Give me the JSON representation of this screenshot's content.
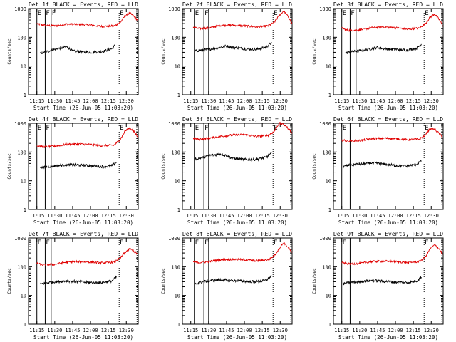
{
  "colors": {
    "events": "#000000",
    "lld": "#e00000",
    "markers": "#000000",
    "axes": "#000000"
  },
  "chart_data": [
    {
      "type": "line",
      "detector": "1f",
      "title": "Det 1f BLACK = Events, RED = LLD",
      "xlabel": "Start Time (26-Jun-05 11:03:20)",
      "ylabel": "Counts/sec",
      "yscale": "log",
      "ylim": [
        1,
        1000
      ],
      "y_ticks": [
        "1",
        "10",
        "100",
        "1000"
      ],
      "x_ticks": [
        "11:15",
        "11:30",
        "11:45",
        "12:00",
        "12:15",
        "12:30"
      ],
      "markers": [
        {
          "label": "E",
          "time": "11:15",
          "style": "solid"
        },
        {
          "label": "F",
          "time": "11:22",
          "style": "solid"
        },
        {
          "label": "F",
          "time": "11:27",
          "style": "solid"
        },
        {
          "label": "E",
          "time": "12:24",
          "style": "dotted"
        },
        {
          "label": "",
          "time": "12:39",
          "style": "dotted"
        }
      ],
      "series": [
        {
          "name": "LLD",
          "color": "red",
          "time": [
            "11:15",
            "11:20",
            "11:30",
            "11:40",
            "11:50",
            "12:00",
            "12:10",
            "12:20",
            "12:25",
            "12:29",
            "12:33",
            "12:37",
            "12:40"
          ],
          "values": [
            300,
            265,
            250,
            285,
            285,
            265,
            240,
            250,
            330,
            560,
            700,
            500,
            380
          ]
        },
        {
          "name": "Events",
          "color": "black",
          "time": [
            "11:18",
            "11:25",
            "11:30",
            "11:35",
            "11:40",
            "11:45",
            "11:50",
            "12:00",
            "12:10",
            "12:18",
            "12:21"
          ],
          "values": [
            28,
            33,
            38,
            42,
            47,
            33,
            32,
            30,
            32,
            40,
            55
          ]
        }
      ]
    },
    {
      "type": "line",
      "detector": "2f",
      "title": "Det 2f BLACK = Events, RED = LLD",
      "xlabel": "Start Time (26-Jun-05 11:03:20)",
      "ylabel": "Counts/sec",
      "yscale": "log",
      "ylim": [
        1,
        1000
      ],
      "y_ticks": [
        "1",
        "10",
        "100",
        "1000"
      ],
      "x_ticks": [
        "11:15",
        "11:30",
        "11:45",
        "12:00",
        "12:15",
        "12:30"
      ],
      "markers": [
        {
          "label": "E",
          "time": "11:18",
          "style": "solid"
        },
        {
          "label": "F",
          "time": "11:26",
          "style": "solid"
        },
        {
          "label": "",
          "time": "11:30",
          "style": "solid"
        },
        {
          "label": "E",
          "time": "12:24",
          "style": "dotted"
        },
        {
          "label": "",
          "time": "12:39",
          "style": "dotted"
        }
      ],
      "series": [
        {
          "name": "LLD",
          "color": "red",
          "time": [
            "11:17",
            "11:22",
            "11:30",
            "11:40",
            "11:50",
            "12:00",
            "12:10",
            "12:20",
            "12:25",
            "12:29",
            "12:33",
            "12:37",
            "12:40"
          ],
          "values": [
            230,
            200,
            210,
            260,
            265,
            250,
            230,
            250,
            330,
            560,
            830,
            500,
            300
          ]
        },
        {
          "name": "Events",
          "color": "black",
          "time": [
            "11:18",
            "11:25",
            "11:30",
            "11:40",
            "11:45",
            "11:50",
            "12:00",
            "12:10",
            "12:18",
            "12:23"
          ],
          "values": [
            33,
            36,
            38,
            45,
            50,
            45,
            40,
            38,
            45,
            65
          ]
        }
      ]
    },
    {
      "type": "line",
      "detector": "3f",
      "title": "Det 3f BLACK = Events, RED = LLD",
      "xlabel": "Start Time (26-Jun-05 11:03:20)",
      "ylabel": "Counts/sec",
      "yscale": "log",
      "ylim": [
        1,
        1000
      ],
      "y_ticks": [
        "1",
        "10",
        "100",
        "1000"
      ],
      "x_ticks": [
        "11:15",
        "11:30",
        "11:45",
        "12:00",
        "12:15",
        "12:30"
      ],
      "markers": [
        {
          "label": "E",
          "time": "11:15",
          "style": "solid"
        },
        {
          "label": "F",
          "time": "11:22",
          "style": "solid"
        },
        {
          "label": "",
          "time": "11:27",
          "style": "solid"
        },
        {
          "label": "E",
          "time": "12:24",
          "style": "dotted"
        },
        {
          "label": "",
          "time": "12:39",
          "style": "dotted"
        }
      ],
      "series": [
        {
          "name": "LLD",
          "color": "red",
          "time": [
            "11:15",
            "11:20",
            "11:30",
            "11:40",
            "11:50",
            "12:00",
            "12:10",
            "12:20",
            "12:25",
            "12:29",
            "12:33",
            "12:37",
            "12:40"
          ],
          "values": [
            210,
            175,
            180,
            215,
            230,
            215,
            190,
            210,
            290,
            500,
            650,
            400,
            240
          ]
        },
        {
          "name": "Events",
          "color": "black",
          "time": [
            "11:18",
            "11:25",
            "11:30",
            "11:40",
            "11:45",
            "11:50",
            "12:00",
            "12:10",
            "12:18",
            "12:22"
          ],
          "values": [
            28,
            32,
            34,
            40,
            45,
            40,
            38,
            36,
            42,
            60
          ]
        }
      ]
    },
    {
      "type": "line",
      "detector": "4f",
      "title": "Det 4f BLACK = Events, RED = LLD",
      "xlabel": "Start Time (26-Jun-05 11:03:20)",
      "ylabel": "Counts/sec",
      "yscale": "log",
      "ylim": [
        1,
        1000
      ],
      "y_ticks": [
        "1",
        "10",
        "100",
        "1000"
      ],
      "x_ticks": [
        "11:15",
        "11:30",
        "11:45",
        "12:00",
        "12:15",
        "12:30"
      ],
      "markers": [
        {
          "label": "E",
          "time": "11:15",
          "style": "solid"
        },
        {
          "label": "F",
          "time": "11:22",
          "style": "solid"
        },
        {
          "label": "",
          "time": "11:27",
          "style": "solid"
        },
        {
          "label": "E",
          "time": "12:24",
          "style": "dotted"
        },
        {
          "label": "",
          "time": "12:39",
          "style": "dotted"
        }
      ],
      "series": [
        {
          "name": "LLD",
          "color": "red",
          "time": [
            "11:15",
            "11:20",
            "11:30",
            "11:40",
            "11:50",
            "12:00",
            "12:10",
            "12:20",
            "12:25",
            "12:29",
            "12:33",
            "12:37",
            "12:40"
          ],
          "values": [
            170,
            150,
            160,
            185,
            190,
            180,
            165,
            175,
            280,
            530,
            700,
            480,
            330
          ]
        },
        {
          "name": "Events",
          "color": "black",
          "time": [
            "11:18",
            "11:25",
            "11:30",
            "11:40",
            "11:50",
            "12:00",
            "12:10",
            "12:18",
            "12:22"
          ],
          "values": [
            28,
            31,
            33,
            36,
            35,
            33,
            31,
            33,
            45
          ]
        }
      ]
    },
    {
      "type": "line",
      "detector": "5f",
      "title": "Det 5f BLACK = Events, RED = LLD",
      "xlabel": "Start Time (26-Jun-05 11:03:20)",
      "ylabel": "Counts/sec",
      "yscale": "log",
      "ylim": [
        1,
        1000
      ],
      "y_ticks": [
        "1",
        "10",
        "100",
        "1000"
      ],
      "x_ticks": [
        "11:15",
        "11:30",
        "11:45",
        "12:00",
        "12:15",
        "12:30"
      ],
      "markers": [
        {
          "label": "E",
          "time": "11:18",
          "style": "solid"
        },
        {
          "label": "F",
          "time": "11:26",
          "style": "solid"
        },
        {
          "label": "",
          "time": "11:30",
          "style": "solid"
        },
        {
          "label": "E",
          "time": "12:24",
          "style": "dotted"
        },
        {
          "label": "",
          "time": "12:39",
          "style": "dotted"
        }
      ],
      "series": [
        {
          "name": "LLD",
          "color": "red",
          "time": [
            "11:17",
            "11:22",
            "11:30",
            "11:40",
            "11:50",
            "12:00",
            "12:10",
            "12:20",
            "12:25",
            "12:29",
            "12:33",
            "12:37",
            "12:40"
          ],
          "values": [
            300,
            275,
            300,
            350,
            390,
            400,
            350,
            380,
            520,
            1000,
            900,
            650,
            460
          ]
        },
        {
          "name": "Events",
          "color": "black",
          "time": [
            "11:18",
            "11:25",
            "11:30",
            "11:40",
            "11:45",
            "11:50",
            "12:00",
            "12:10",
            "12:18",
            "12:23"
          ],
          "values": [
            55,
            65,
            75,
            85,
            75,
            60,
            55,
            55,
            65,
            90
          ]
        }
      ]
    },
    {
      "type": "line",
      "detector": "6f",
      "title": "Det 6f BLACK = Events, RED = LLD",
      "xlabel": "Start Time (26-Jun-05 11:03:20)",
      "ylabel": "Counts/sec",
      "yscale": "log",
      "ylim": [
        1,
        1000
      ],
      "y_ticks": [
        "1",
        "10",
        "100",
        "1000"
      ],
      "x_ticks": [
        "11:15",
        "11:30",
        "11:45",
        "12:00",
        "12:15",
        "12:30"
      ],
      "markers": [
        {
          "label": "E",
          "time": "11:15",
          "style": "solid"
        },
        {
          "label": "",
          "time": "11:22",
          "style": "solid"
        },
        {
          "label": "E",
          "time": "12:24",
          "style": "dotted"
        },
        {
          "label": "",
          "time": "12:39",
          "style": "dotted"
        }
      ],
      "series": [
        {
          "name": "LLD",
          "color": "red",
          "time": [
            "11:15",
            "11:20",
            "11:30",
            "11:40",
            "11:50",
            "12:00",
            "12:10",
            "12:20",
            "12:25",
            "12:29",
            "12:33",
            "12:37",
            "12:40"
          ],
          "values": [
            260,
            240,
            250,
            290,
            300,
            290,
            265,
            280,
            380,
            660,
            600,
            430,
            300
          ]
        },
        {
          "name": "Events",
          "color": "black",
          "time": [
            "11:16",
            "11:22",
            "11:30",
            "11:40",
            "11:50",
            "12:00",
            "12:10",
            "12:18",
            "12:22"
          ],
          "values": [
            30,
            36,
            38,
            42,
            38,
            34,
            32,
            38,
            52
          ]
        }
      ]
    },
    {
      "type": "line",
      "detector": "7f",
      "title": "Det 7f BLACK = Events, RED = LLD",
      "xlabel": "Start Time (26-Jun-05 11:03:20)",
      "ylabel": "Counts/sec",
      "yscale": "log",
      "ylim": [
        1,
        1000
      ],
      "y_ticks": [
        "1",
        "10",
        "100",
        "1000"
      ],
      "x_ticks": [
        "11:15",
        "11:30",
        "11:45",
        "12:00",
        "12:15",
        "12:30"
      ],
      "markers": [
        {
          "label": "E",
          "time": "11:15",
          "style": "solid"
        },
        {
          "label": "F",
          "time": "11:22",
          "style": "solid"
        },
        {
          "label": "",
          "time": "11:27",
          "style": "solid"
        },
        {
          "label": "E",
          "time": "12:24",
          "style": "dotted"
        },
        {
          "label": "",
          "time": "12:39",
          "style": "dotted"
        }
      ],
      "series": [
        {
          "name": "LLD",
          "color": "red",
          "time": [
            "11:15",
            "11:20",
            "11:30",
            "11:40",
            "11:50",
            "12:00",
            "12:10",
            "12:20",
            "12:25",
            "12:29",
            "12:33",
            "12:37",
            "12:40"
          ],
          "values": [
            130,
            115,
            120,
            145,
            150,
            145,
            135,
            145,
            200,
            320,
            420,
            330,
            260
          ]
        },
        {
          "name": "Events",
          "color": "black",
          "time": [
            "11:18",
            "11:25",
            "11:30",
            "11:40",
            "11:50",
            "12:00",
            "12:10",
            "12:18",
            "12:22"
          ],
          "values": [
            25,
            28,
            30,
            32,
            30,
            28,
            28,
            32,
            45
          ]
        }
      ]
    },
    {
      "type": "line",
      "detector": "8f",
      "title": "Det 8f BLACK = Events, RED = LLD",
      "xlabel": "Start Time (26-Jun-05 11:03:20)",
      "ylabel": "Counts/sec",
      "yscale": "log",
      "ylim": [
        1,
        1000
      ],
      "y_ticks": [
        "1",
        "10",
        "100",
        "1000"
      ],
      "x_ticks": [
        "11:15",
        "11:30",
        "11:45",
        "12:00",
        "12:15",
        "12:30"
      ],
      "markers": [
        {
          "label": "E",
          "time": "11:18",
          "style": "solid"
        },
        {
          "label": "F",
          "time": "11:26",
          "style": "solid"
        },
        {
          "label": "",
          "time": "11:30",
          "style": "solid"
        },
        {
          "label": "E",
          "time": "12:24",
          "style": "dotted"
        },
        {
          "label": "",
          "time": "12:39",
          "style": "dotted"
        }
      ],
      "series": [
        {
          "name": "LLD",
          "color": "red",
          "time": [
            "11:17",
            "11:22",
            "11:30",
            "11:40",
            "11:50",
            "12:00",
            "12:10",
            "12:20",
            "12:25",
            "12:29",
            "12:33",
            "12:37",
            "12:40"
          ],
          "values": [
            150,
            140,
            150,
            175,
            180,
            175,
            160,
            175,
            240,
            420,
            700,
            450,
            300
          ]
        },
        {
          "name": "Events",
          "color": "black",
          "time": [
            "11:18",
            "11:25",
            "11:30",
            "11:40",
            "11:50",
            "12:00",
            "12:10",
            "12:18",
            "12:23"
          ],
          "values": [
            25,
            30,
            32,
            35,
            33,
            31,
            30,
            33,
            50
          ]
        }
      ]
    },
    {
      "type": "line",
      "detector": "9f",
      "title": "Det 9f BLACK = Events, RED = LLD",
      "xlabel": "Start Time (26-Jun-05 11:03:20)",
      "ylabel": "Counts/sec",
      "yscale": "log",
      "ylim": [
        1,
        1000
      ],
      "y_ticks": [
        "1",
        "10",
        "100",
        "1000"
      ],
      "x_ticks": [
        "11:15",
        "11:30",
        "11:45",
        "12:00",
        "12:15",
        "12:30"
      ],
      "markers": [
        {
          "label": "E",
          "time": "11:15",
          "style": "solid"
        },
        {
          "label": "",
          "time": "11:22",
          "style": "solid"
        },
        {
          "label": "E",
          "time": "12:24",
          "style": "dotted"
        },
        {
          "label": "",
          "time": "12:39",
          "style": "dotted"
        }
      ],
      "series": [
        {
          "name": "LLD",
          "color": "red",
          "time": [
            "11:15",
            "11:20",
            "11:30",
            "11:40",
            "11:50",
            "12:00",
            "12:10",
            "12:20",
            "12:25",
            "12:29",
            "12:33",
            "12:37",
            "12:40"
          ],
          "values": [
            140,
            125,
            130,
            150,
            155,
            150,
            140,
            150,
            220,
            420,
            580,
            400,
            250
          ]
        },
        {
          "name": "Events",
          "color": "black",
          "time": [
            "11:16",
            "11:22",
            "11:30",
            "11:40",
            "11:50",
            "12:00",
            "12:10",
            "12:18",
            "12:22"
          ],
          "values": [
            25,
            28,
            30,
            33,
            31,
            29,
            28,
            32,
            45
          ]
        }
      ]
    }
  ]
}
